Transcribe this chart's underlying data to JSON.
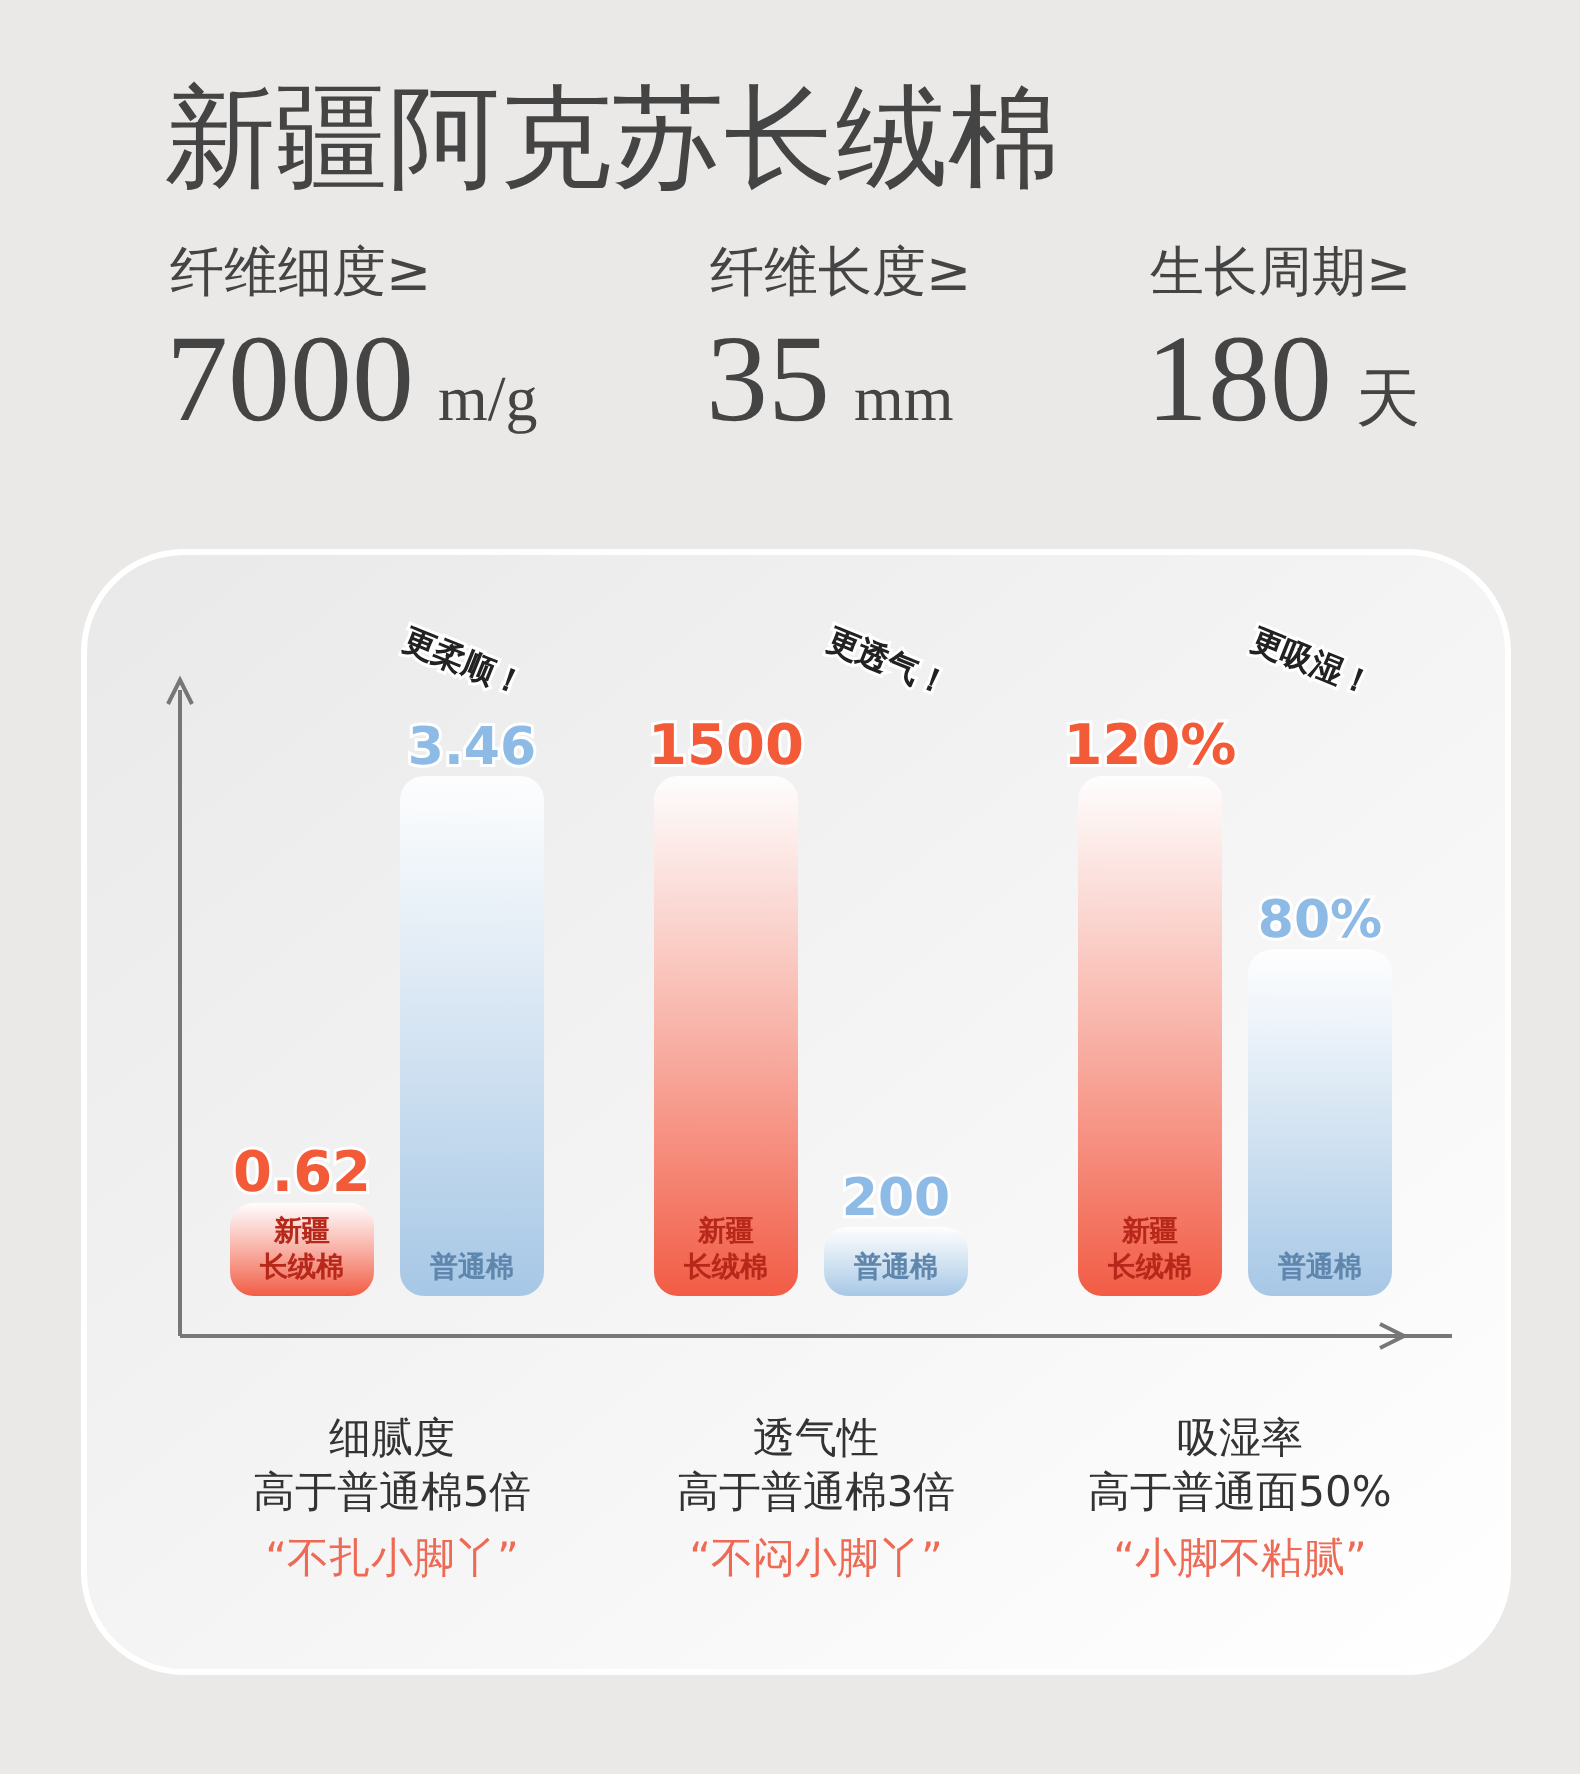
{
  "chart_data": [
    {
      "type": "other",
      "title": "新疆阿克苏长绒棉",
      "annotations": [
        "纤维细度≥",
        "7000",
        "m/g",
        "纤维长度≥",
        "35",
        "mm",
        "生长周期≥",
        "180",
        "天"
      ]
    },
    {
      "type": "bar",
      "categories": [
        "新疆长绒棉",
        "普通棉"
      ],
      "values": [
        0.62,
        3.46
      ],
      "colors": [
        "#f25c45",
        "#a6c7e6"
      ],
      "data_labels": true,
      "xlabel": "细腻度高于普通棉5倍",
      "annotations": [
        "更柔顺！",
        "“不扎小脚丫”"
      ]
    },
    {
      "type": "bar",
      "categories": [
        "新疆长绒棉",
        "普通棉"
      ],
      "values": [
        1500,
        200
      ],
      "colors": [
        "#f25c45",
        "#a6c7e6"
      ],
      "data_labels": true,
      "xlabel": "透气性高于普通棉3倍",
      "annotations": [
        "更透气！",
        "“不闷小脚丫”"
      ]
    },
    {
      "type": "bar",
      "categories": [
        "新疆长绒棉",
        "普通棉"
      ],
      "values": [
        120,
        80
      ],
      "colors": [
        "#f25c45",
        "#a6c7e6"
      ],
      "value_labels": [
        "120%",
        "80%"
      ],
      "xlabel": "吸湿率高于普通面50%",
      "annotations": [
        "更吸湿！",
        "“小脚不粘腻”"
      ]
    }
  ]
}
